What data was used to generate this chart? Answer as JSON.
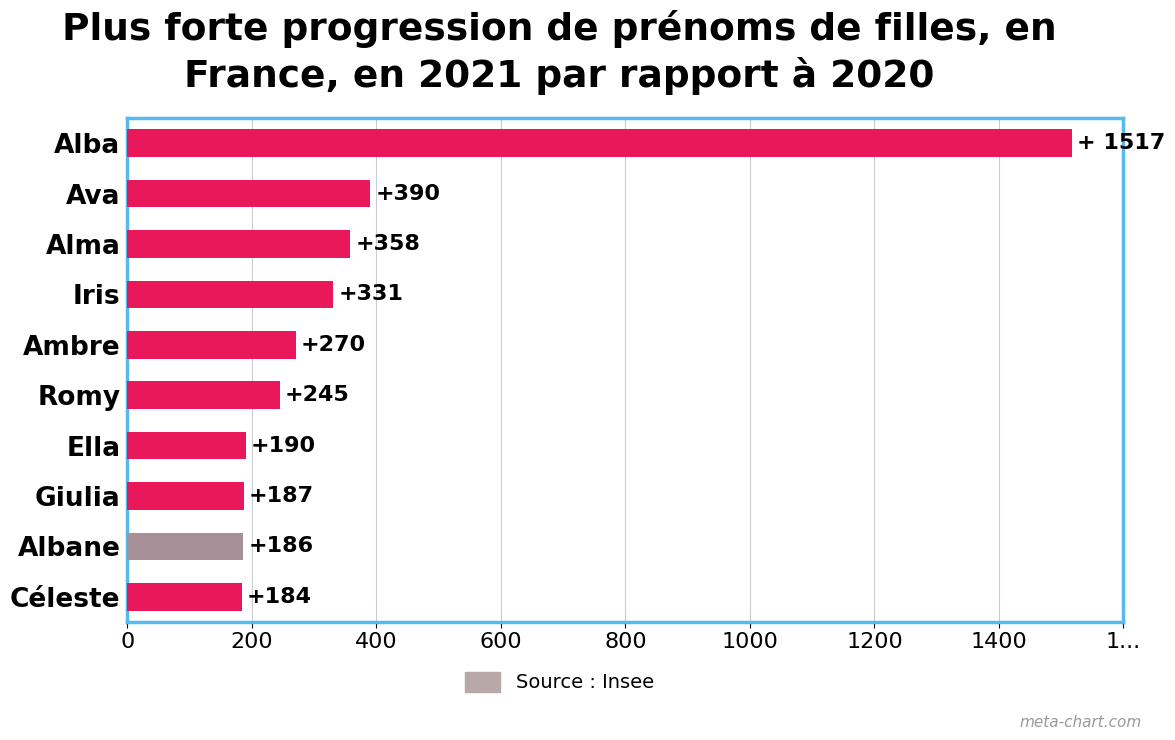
{
  "title": "Plus forte progression de prénoms de filles, en\nFrance, en 2021 par rapport à 2020",
  "categories": [
    "Alba",
    "Ava",
    "Alma",
    "Iris",
    "Ambre",
    "Romy",
    "Ella",
    "Giulia",
    "Albane",
    "Céleste"
  ],
  "values": [
    1517,
    390,
    358,
    331,
    270,
    245,
    190,
    187,
    186,
    184
  ],
  "labels": [
    "+ 1517",
    "+390",
    "+358",
    "+331",
    "+270",
    "+245",
    "+190",
    "+187",
    "+186",
    "+184"
  ],
  "bar_colors": [
    "#E8185A",
    "#E8185A",
    "#E8185A",
    "#E8185A",
    "#E8185A",
    "#E8185A",
    "#E8185A",
    "#E8185A",
    "#A89098",
    "#E8185A"
  ],
  "xlim": [
    0,
    1600
  ],
  "xtick_step": 200,
  "background_color": "#ffffff",
  "plot_border_color": "#55BBEE",
  "title_fontsize": 27,
  "label_fontsize": 16,
  "tick_fontsize": 16,
  "ytick_fontsize": 19,
  "source_text": "Source : Insee",
  "source_color": "#B8A8A8",
  "watermark": "meta-chart.com"
}
